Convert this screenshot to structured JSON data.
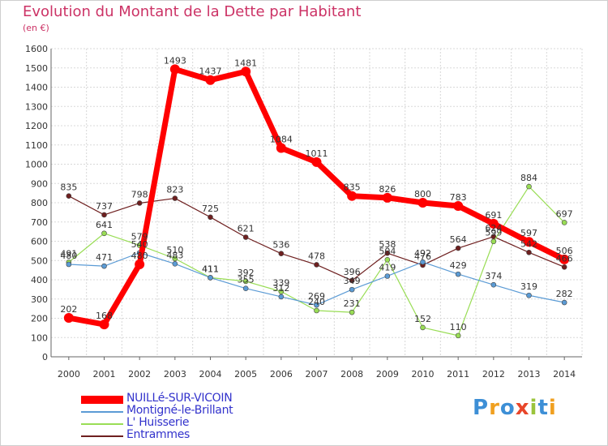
{
  "title": "Evolution du Montant de la Dette par Habitant",
  "subtitle": "(en €)",
  "logo": {
    "text": "Proxiti",
    "colors": [
      "#3d8fd6",
      "#f0a020",
      "#3d8fd6",
      "#e8462a",
      "#9bc43c",
      "#3d8fd6",
      "#f0a020"
    ]
  },
  "chart_data": {
    "type": "line",
    "x": [
      2000,
      2001,
      2002,
      2003,
      2004,
      2005,
      2006,
      2007,
      2008,
      2009,
      2010,
      2011,
      2012,
      2013,
      2014
    ],
    "xlabels": [
      "2000",
      "2001",
      "2002",
      "2003",
      "2004",
      "2005",
      "2006",
      "2007",
      "2008",
      "2009",
      "2010",
      "2011",
      "2012",
      "2013",
      "2014"
    ],
    "ylim": [
      0,
      1600
    ],
    "yticks": [
      0,
      100,
      200,
      300,
      400,
      500,
      600,
      700,
      800,
      900,
      1000,
      1100,
      1200,
      1300,
      1400,
      1500,
      1600
    ],
    "grid": true,
    "legend_position": "bottom-left",
    "series": [
      {
        "name": "Entrammes",
        "color": "#6e1f1f",
        "width": 1.2,
        "marker": 3,
        "values": [
          835,
          737,
          798,
          823,
          725,
          621,
          536,
          478,
          396,
          538,
          476,
          564,
          624,
          542,
          466
        ],
        "labels": [
          "835",
          "737",
          "798",
          "823",
          "725",
          "621",
          "536",
          "478",
          "396",
          "538",
          "476",
          "564",
          "624",
          "542",
          "466"
        ]
      },
      {
        "name": "L' Huisserie",
        "color": "#99dd55",
        "width": 1.2,
        "marker": 3,
        "values": [
          491,
          641,
          579,
          510,
          411,
          392,
          339,
          240,
          231,
          504,
          152,
          110,
          599,
          884,
          697
        ],
        "labels": [
          "491",
          "641",
          "579",
          "510",
          "411",
          "392",
          "339",
          "240",
          "231",
          "504",
          "152",
          "110",
          "599",
          "884",
          "697"
        ]
      },
      {
        "name": "Montigné-le-Brillant",
        "color": "#5b9bd5",
        "width": 1.2,
        "marker": 3,
        "values": [
          480,
          471,
          540,
          483,
          411,
          355,
          312,
          269,
          349,
          419,
          492,
          429,
          374,
          319,
          282
        ],
        "labels": [
          "480",
          "471",
          "540",
          "483",
          "411",
          "355",
          "312",
          "269",
          "349",
          "419",
          "492",
          "429",
          "374",
          "319",
          "282"
        ]
      },
      {
        "name": "NUILLé-SUR-VICOIN",
        "color": "#ff0000",
        "width": 7,
        "marker": 6,
        "values": [
          202,
          168,
          480,
          1493,
          1437,
          1481,
          1084,
          1011,
          835,
          826,
          800,
          783,
          691,
          597,
          506
        ],
        "labels": [
          "202",
          "168",
          "480",
          "1493",
          "1437",
          "1481",
          "1084",
          "1011",
          "835",
          "826",
          "800",
          "783",
          "691",
          "597",
          "506"
        ]
      }
    ]
  },
  "legend_order": [
    3,
    2,
    1,
    0
  ]
}
